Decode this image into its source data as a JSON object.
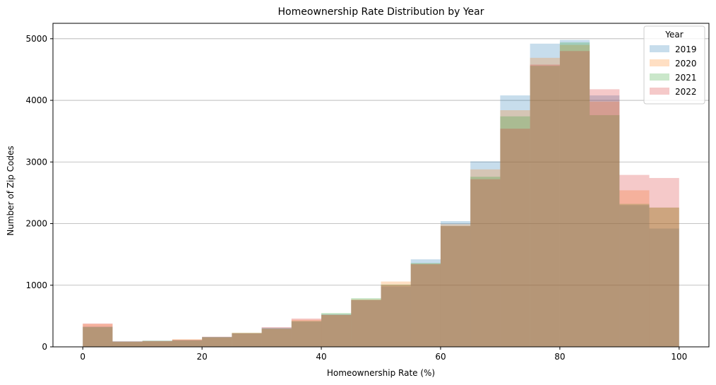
{
  "chart_data": {
    "type": "histogram",
    "title": "Homeownership Rate Distribution by Year",
    "xlabel": "Homeownership Rate (%)",
    "ylabel": "Number of Zip Codes",
    "xlim": [
      -5,
      105
    ],
    "ylim": [
      0,
      5250
    ],
    "x_ticks": [
      0,
      20,
      40,
      60,
      80,
      100
    ],
    "y_ticks": [
      0,
      1000,
      2000,
      3000,
      4000,
      5000
    ],
    "grid": "horizontal",
    "bin_edges": [
      0,
      5,
      10,
      15,
      20,
      25,
      30,
      35,
      40,
      45,
      50,
      55,
      60,
      65,
      70,
      75,
      80,
      85,
      90,
      95,
      100
    ],
    "legend": {
      "title": "Year",
      "position": "top-right"
    },
    "series": [
      {
        "name": "2019",
        "color": "#1f77b4",
        "values": [
          330,
          90,
          100,
          110,
          160,
          220,
          310,
          410,
          530,
          760,
          980,
          1420,
          2040,
          3010,
          4080,
          4920,
          4980,
          4080,
          2300,
          1920
        ]
      },
      {
        "name": "2020",
        "color": "#ff7f0e",
        "values": [
          370,
          80,
          95,
          125,
          150,
          230,
          290,
          440,
          520,
          770,
          1060,
          1350,
          1990,
          2880,
          3840,
          4690,
          4900,
          3980,
          2540,
          2260
        ]
      },
      {
        "name": "2021",
        "color": "#2ca02c",
        "values": [
          320,
          85,
          98,
          105,
          160,
          225,
          300,
          420,
          550,
          790,
          1010,
          1360,
          1960,
          2760,
          3740,
          4560,
          4940,
          3760,
          2320,
          2260
        ]
      },
      {
        "name": "2022",
        "color": "#d62728",
        "values": [
          380,
          90,
          92,
          115,
          165,
          220,
          320,
          460,
          520,
          760,
          1000,
          1340,
          1960,
          2720,
          3540,
          4580,
          4800,
          4180,
          2790,
          2740
        ]
      }
    ]
  }
}
